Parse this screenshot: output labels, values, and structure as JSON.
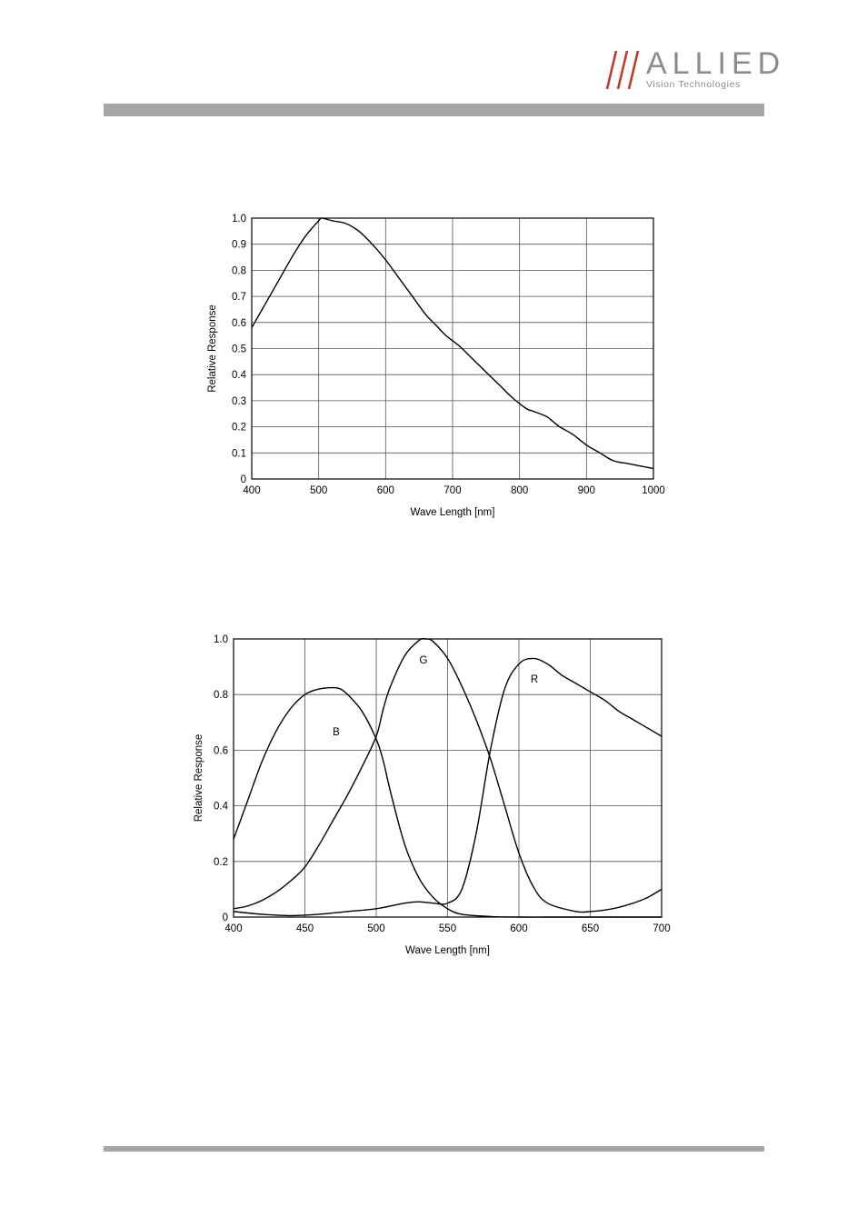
{
  "header": {
    "logo_word": "ALLIED",
    "logo_subtitle": "Vision Technologies",
    "accent_color": "#c0392b",
    "logo_gray": "#8c8c8c",
    "rule_color": "#a6a6a6"
  },
  "chart_data": [
    {
      "type": "line",
      "title": "",
      "xlabel": "Wave Length [nm]",
      "ylabel": "Relative Response",
      "xlim": [
        400,
        1000
      ],
      "ylim": [
        0,
        1.0
      ],
      "xticks": [
        "400",
        "500",
        "600",
        "700",
        "800",
        "900",
        "1000"
      ],
      "yticks": [
        "0",
        "0.1",
        "0.2",
        "0.3",
        "0.4",
        "0.5",
        "0.6",
        "0.7",
        "0.8",
        "0.9",
        "1.0"
      ],
      "grid": true,
      "series": [
        {
          "x": [
            400,
            420,
            440,
            460,
            480,
            500,
            505,
            520,
            540,
            560,
            580,
            600,
            620,
            640,
            660,
            675,
            690,
            710,
            730,
            750,
            770,
            790,
            810,
            820,
            840,
            850,
            860,
            880,
            900,
            920,
            940,
            960,
            980,
            1000
          ],
          "y": [
            0.58,
            0.67,
            0.76,
            0.85,
            0.93,
            0.99,
            1.0,
            0.99,
            0.98,
            0.95,
            0.9,
            0.84,
            0.77,
            0.7,
            0.63,
            0.59,
            0.55,
            0.51,
            0.46,
            0.41,
            0.36,
            0.31,
            0.27,
            0.26,
            0.24,
            0.22,
            0.2,
            0.17,
            0.13,
            0.1,
            0.07,
            0.06,
            0.05,
            0.04
          ]
        }
      ]
    },
    {
      "type": "line",
      "title": "",
      "xlabel": "Wave Length [nm]",
      "ylabel": "Relative Response",
      "xlim": [
        400,
        700
      ],
      "ylim": [
        0,
        1.0
      ],
      "xticks": [
        "400",
        "450",
        "500",
        "550",
        "600",
        "650",
        "700"
      ],
      "yticks": [
        "0",
        "0.2",
        "0.4",
        "0.6",
        "0.8",
        "1.0"
      ],
      "grid": true,
      "series": [
        {
          "name": "B",
          "x": [
            400,
            410,
            420,
            430,
            440,
            450,
            460,
            470,
            475,
            480,
            490,
            500,
            505,
            510,
            520,
            530,
            540,
            550,
            560,
            580,
            600,
            620,
            640,
            660,
            680,
            700
          ],
          "y": [
            0.28,
            0.42,
            0.56,
            0.67,
            0.75,
            0.8,
            0.82,
            0.825,
            0.82,
            0.8,
            0.74,
            0.64,
            0.56,
            0.45,
            0.26,
            0.14,
            0.07,
            0.03,
            0.01,
            0.002,
            0.0,
            0.0,
            0.0,
            0.0,
            0.0,
            0.0
          ]
        },
        {
          "name": "G",
          "x": [
            400,
            410,
            420,
            430,
            440,
            450,
            460,
            470,
            480,
            490,
            500,
            505,
            510,
            520,
            530,
            535,
            540,
            550,
            560,
            570,
            580,
            590,
            600,
            610,
            620,
            640,
            650,
            660,
            670,
            680,
            690,
            700
          ],
          "y": [
            0.03,
            0.04,
            0.06,
            0.09,
            0.13,
            0.18,
            0.26,
            0.35,
            0.44,
            0.54,
            0.65,
            0.75,
            0.83,
            0.94,
            0.995,
            1.0,
            0.99,
            0.93,
            0.83,
            0.71,
            0.57,
            0.4,
            0.23,
            0.11,
            0.05,
            0.02,
            0.02,
            0.025,
            0.035,
            0.05,
            0.07,
            0.1
          ]
        },
        {
          "name": "R",
          "x": [
            400,
            420,
            440,
            460,
            480,
            500,
            520,
            530,
            540,
            550,
            560,
            570,
            580,
            590,
            600,
            610,
            620,
            630,
            640,
            650,
            660,
            670,
            680,
            690,
            700
          ],
          "y": [
            0.02,
            0.01,
            0.005,
            0.01,
            0.02,
            0.03,
            0.05,
            0.055,
            0.05,
            0.05,
            0.1,
            0.3,
            0.6,
            0.82,
            0.91,
            0.93,
            0.91,
            0.87,
            0.84,
            0.81,
            0.78,
            0.74,
            0.71,
            0.68,
            0.65
          ]
        }
      ],
      "annotations": [
        "B",
        "G",
        "R"
      ]
    }
  ]
}
